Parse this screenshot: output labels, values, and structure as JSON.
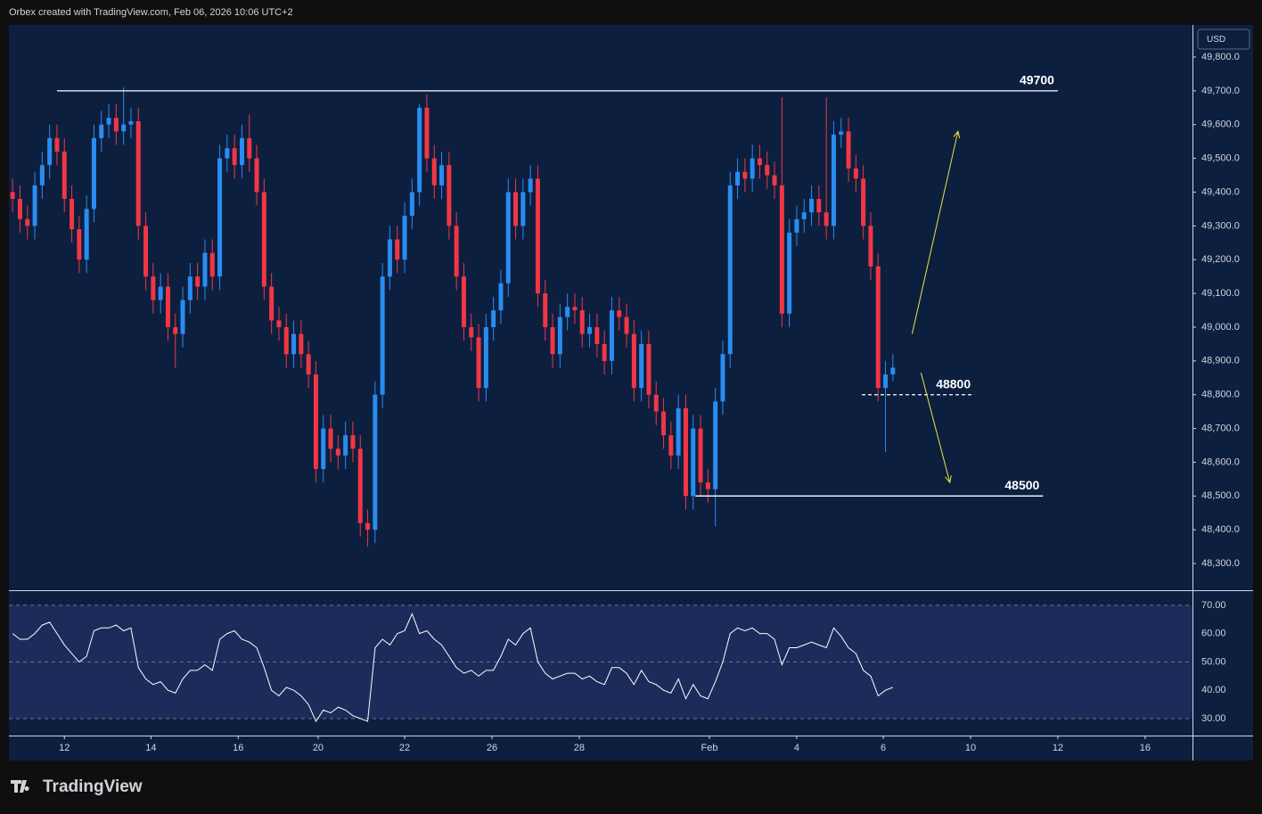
{
  "header": "Orbex created with TradingView.com, Feb 06, 2026 10:06 UTC+2",
  "brand": "TradingView",
  "currency": "USD",
  "chart_data": [
    {
      "type": "candlestick",
      "up_color": "#2a8cf0",
      "down_color": "#f23645",
      "open": [
        49400,
        49380,
        49320,
        49300,
        49420,
        49480,
        49560,
        49520,
        49380,
        49290,
        49200,
        49350,
        49560,
        49600,
        49620,
        49580,
        49600,
        49610,
        49300,
        49150,
        49080,
        49120,
        49000,
        48980,
        49080,
        49150,
        49120,
        49220,
        49150,
        49500,
        49530,
        49480,
        49560,
        49500,
        49400,
        49120,
        49020,
        49000,
        48920,
        48980,
        48920,
        48860,
        48580,
        48700,
        48640,
        48620,
        48680,
        48640,
        48420,
        48400,
        48800,
        49150,
        49260,
        49200,
        49330,
        49400,
        49650,
        49500,
        49420,
        49480,
        49300,
        49150,
        49000,
        48970,
        48820,
        49000,
        49050,
        49130,
        49400,
        49300,
        49400,
        49440,
        49100,
        49000,
        48920,
        49030,
        49060,
        49050,
        48980,
        49000,
        48950,
        48900,
        49050,
        49030,
        48980,
        48820,
        48950,
        48800,
        48750,
        48680,
        48620,
        48760,
        48500,
        48700,
        48540,
        48520,
        48780,
        48920,
        49420,
        49460,
        49440,
        49500,
        49480,
        49450,
        49420,
        49040,
        49280,
        49320,
        49340,
        49380,
        49340,
        49300,
        49570,
        49580,
        49470,
        49440,
        49300,
        49180,
        48820,
        48860
      ],
      "high": [
        49440,
        49420,
        49360,
        49460,
        49520,
        49600,
        49600,
        49560,
        49420,
        49330,
        49390,
        49600,
        49640,
        49660,
        49660,
        49710,
        49650,
        49650,
        49340,
        49190,
        49160,
        49160,
        49040,
        49120,
        49190,
        49190,
        49260,
        49260,
        49540,
        49570,
        49570,
        49600,
        49630,
        49540,
        49440,
        49160,
        49060,
        49040,
        49020,
        49020,
        48960,
        48900,
        48740,
        48740,
        48680,
        48720,
        48720,
        48680,
        48460,
        48840,
        49190,
        49300,
        49300,
        49370,
        49440,
        49660,
        49690,
        49540,
        49520,
        49520,
        49340,
        49190,
        49040,
        49010,
        49040,
        49090,
        49170,
        49440,
        49440,
        49440,
        49480,
        49480,
        49140,
        49040,
        49070,
        49100,
        49100,
        49090,
        49040,
        49040,
        48990,
        49090,
        49090,
        49070,
        49020,
        48990,
        48990,
        48840,
        48790,
        48720,
        48800,
        48800,
        48740,
        48740,
        48580,
        48820,
        48960,
        49460,
        49500,
        49500,
        49540,
        49540,
        49520,
        49490,
        49680,
        49320,
        49360,
        49380,
        49420,
        49420,
        49680,
        49610,
        49620,
        49620,
        49510,
        49480,
        49340,
        49220,
        48900,
        48920
      ],
      "low": [
        49340,
        49280,
        49260,
        49260,
        49380,
        49440,
        49480,
        49340,
        49250,
        49160,
        49160,
        49310,
        49520,
        49560,
        49540,
        49540,
        49560,
        49260,
        49110,
        49040,
        49040,
        48960,
        48880,
        48940,
        49040,
        49080,
        49080,
        49110,
        49110,
        49460,
        49440,
        49440,
        49460,
        49360,
        49080,
        48980,
        48960,
        48880,
        48880,
        48880,
        48820,
        48540,
        48540,
        48600,
        48580,
        48580,
        48600,
        48380,
        48350,
        48360,
        48760,
        49110,
        49160,
        49160,
        49290,
        49360,
        49460,
        49380,
        49380,
        49260,
        49110,
        48960,
        48930,
        48780,
        48780,
        48960,
        49010,
        49090,
        49260,
        49260,
        49360,
        49060,
        48960,
        48880,
        48880,
        48990,
        49010,
        48940,
        48940,
        48910,
        48860,
        48860,
        48990,
        48940,
        48780,
        48780,
        48760,
        48710,
        48640,
        48580,
        48580,
        48460,
        48460,
        48500,
        48480,
        48410,
        48740,
        48880,
        49380,
        49400,
        49400,
        49440,
        49410,
        49380,
        49000,
        49000,
        49240,
        49280,
        49300,
        49300,
        49260,
        49260,
        49530,
        49430,
        49400,
        49260,
        49140,
        48780,
        48630,
        48840
      ],
      "close": [
        49380,
        49320,
        49300,
        49420,
        49480,
        49560,
        49520,
        49380,
        49290,
        49200,
        49350,
        49560,
        49600,
        49620,
        49580,
        49600,
        49610,
        49300,
        49150,
        49080,
        49120,
        49000,
        48980,
        49080,
        49150,
        49120,
        49220,
        49150,
        49500,
        49530,
        49480,
        49560,
        49500,
        49400,
        49120,
        49020,
        49000,
        48920,
        48980,
        48920,
        48860,
        48580,
        48700,
        48640,
        48620,
        48680,
        48640,
        48420,
        48400,
        48800,
        49150,
        49260,
        49200,
        49330,
        49400,
        49650,
        49500,
        49420,
        49480,
        49300,
        49150,
        49000,
        48970,
        48820,
        49000,
        49050,
        49130,
        49400,
        49300,
        49400,
        49440,
        49100,
        49000,
        48920,
        49030,
        49060,
        49050,
        48980,
        49000,
        48950,
        48900,
        49050,
        49030,
        48980,
        48820,
        48950,
        48800,
        48750,
        48680,
        48620,
        48760,
        48500,
        48700,
        48540,
        48520,
        48780,
        48920,
        49420,
        49460,
        49440,
        49500,
        49480,
        49450,
        49420,
        49040,
        49280,
        49320,
        49340,
        49380,
        49340,
        49300,
        49570,
        49580,
        49470,
        49440,
        49300,
        49180,
        48820,
        48860,
        48880
      ],
      "xlim": [
        -0.5,
        159.5
      ],
      "ylim": [
        48221,
        49895
      ],
      "yticks": [
        {
          "value": 48300,
          "label": "48,300.0"
        },
        {
          "value": 48400,
          "label": "48,400.0"
        },
        {
          "value": 48500,
          "label": "48,500.0"
        },
        {
          "value": 48600,
          "label": "48,600.0"
        },
        {
          "value": 48700,
          "label": "48,700.0"
        },
        {
          "value": 48800,
          "label": "48,800.0"
        },
        {
          "value": 48900,
          "label": "48,900.0"
        },
        {
          "value": 49000,
          "label": "49,000.0"
        },
        {
          "value": 49100,
          "label": "49,100.0"
        },
        {
          "value": 49200,
          "label": "49,200.0"
        },
        {
          "value": 49300,
          "label": "49,300.0"
        },
        {
          "value": 49400,
          "label": "49,400.0"
        },
        {
          "value": 49500,
          "label": "49,500.0"
        },
        {
          "value": 49600,
          "label": "49,600.0"
        },
        {
          "value": 49700,
          "label": "49,700.0"
        },
        {
          "value": 49800,
          "label": "49,800.0"
        }
      ],
      "levels": [
        {
          "label": "49700",
          "value": 49700,
          "from": 6,
          "to": 141.3,
          "style": "solid"
        },
        {
          "label": "48800",
          "value": 48800,
          "from": 114.8,
          "to": 130,
          "style": "dashed"
        },
        {
          "label": "48500",
          "value": 48500,
          "from": 92.3,
          "to": 139.3,
          "style": "solid"
        }
      ],
      "arrows": [
        {
          "color": "#f0e442",
          "from": [
            121.6,
            48980
          ],
          "to": [
            127.8,
            49580
          ]
        },
        {
          "color": "#f0e442",
          "from": [
            122.8,
            48865
          ],
          "to": [
            126.7,
            48540
          ]
        }
      ]
    },
    {
      "type": "line",
      "color": "#ffffff",
      "band_color": "#1c2b5a",
      "values": [
        60,
        58,
        58,
        60,
        63,
        64,
        60,
        56,
        53,
        50,
        52,
        61,
        62,
        62,
        63,
        61,
        62,
        48,
        44,
        42,
        43,
        40,
        39,
        44,
        47,
        47,
        49,
        47,
        58,
        60,
        61,
        58,
        57,
        55,
        48,
        40,
        38,
        41,
        40,
        38,
        35,
        29,
        33,
        32,
        34,
        33,
        31,
        30,
        29,
        55,
        58,
        56,
        60,
        61,
        67,
        60,
        61,
        58,
        56,
        52,
        48,
        46,
        47,
        45,
        47,
        47,
        52,
        58,
        56,
        60,
        62,
        50,
        46,
        44,
        45,
        46,
        46,
        44,
        45,
        43,
        42,
        48,
        48,
        46,
        42,
        47,
        43,
        42,
        40,
        39,
        44,
        37,
        42,
        38,
        37,
        43,
        50,
        60,
        62,
        61,
        62,
        60,
        60,
        58,
        49,
        55,
        55,
        56,
        57,
        56,
        55,
        62,
        59,
        55,
        53,
        47,
        45,
        38,
        40,
        41
      ],
      "xlim": [
        -0.5,
        159.5
      ],
      "ylim": [
        24,
        75
      ],
      "band": [
        30,
        70
      ],
      "yticks": [
        {
          "value": 30,
          "label": "30.00"
        },
        {
          "value": 40,
          "label": "40.00"
        },
        {
          "value": 50,
          "label": "50.00"
        },
        {
          "value": 60,
          "label": "60.00"
        },
        {
          "value": 70,
          "label": "70.00"
        }
      ],
      "xticks": [
        {
          "value": 7,
          "label": "12"
        },
        {
          "value": 18.7,
          "label": "14"
        },
        {
          "value": 30.5,
          "label": "16"
        },
        {
          "value": 41.3,
          "label": "20"
        },
        {
          "value": 53,
          "label": "22"
        },
        {
          "value": 64.8,
          "label": "26"
        },
        {
          "value": 76.6,
          "label": "28"
        },
        {
          "value": 94.2,
          "label": "Feb"
        },
        {
          "value": 106,
          "label": "4"
        },
        {
          "value": 117.7,
          "label": "6"
        },
        {
          "value": 129.5,
          "label": "10"
        },
        {
          "value": 141.3,
          "label": "12"
        },
        {
          "value": 153.1,
          "label": "16"
        }
      ]
    }
  ]
}
